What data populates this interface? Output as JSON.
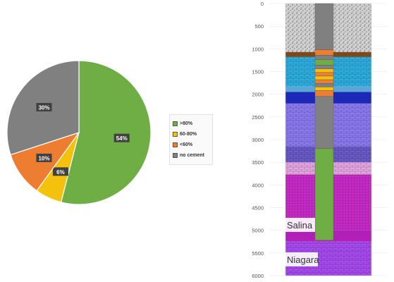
{
  "chart_data": [
    {
      "type": "pie",
      "categories": [
        ">80%",
        "60-80%",
        "<60%",
        "no cement"
      ],
      "values": [
        54,
        6,
        10,
        30
      ],
      "labels": [
        "54%",
        "6%",
        "10%",
        "30%"
      ],
      "colors": [
        "#6fae45",
        "#f4c20d",
        "#ed7d31",
        "#808080"
      ],
      "legend_position": "right"
    },
    {
      "type": "bar",
      "orientation": "vertical-depth-column",
      "yaxis_ticks": [
        "0",
        "500",
        "1000",
        "1500",
        "2000",
        "2500",
        "3000",
        "3500",
        "4000",
        "4500",
        "5000",
        "5500",
        "6000"
      ],
      "ylim": [
        0,
        6000
      ],
      "yaxis_inverted": true,
      "ylabel": "",
      "formation_labels": [
        {
          "text": "Salina",
          "depth": 4880
        },
        {
          "text": "Niagara",
          "depth": 5640
        }
      ],
      "layers": [
        {
          "top": 0,
          "bottom": 1070,
          "color": "#d0d0d0",
          "pattern": "speckle"
        },
        {
          "top": 1070,
          "bottom": 1180,
          "color": "#7a4a1e",
          "pattern": "solid"
        },
        {
          "top": 1180,
          "bottom": 1830,
          "color": "#2eaedf",
          "pattern": "brick"
        },
        {
          "top": 1830,
          "bottom": 1950,
          "color": "#5aa7d6",
          "pattern": "solid"
        },
        {
          "top": 1950,
          "bottom": 2200,
          "color": "#1c28b8",
          "pattern": "solid"
        },
        {
          "top": 2200,
          "bottom": 3150,
          "color": "#8c7af0",
          "pattern": "brick"
        },
        {
          "top": 3150,
          "bottom": 3500,
          "color": "#6a5ac8",
          "pattern": "brick"
        },
        {
          "top": 3500,
          "bottom": 3770,
          "color": "#e4a7e2",
          "pattern": "brick"
        },
        {
          "top": 3770,
          "bottom": 5000,
          "color": "#c728c7",
          "pattern": "grid"
        },
        {
          "top": 5000,
          "bottom": 5250,
          "color": "#b020b8",
          "pattern": "solid"
        },
        {
          "top": 5250,
          "bottom": 6000,
          "color": "#a74bf0",
          "pattern": "brick"
        }
      ],
      "casing_segments": [
        {
          "top": 0,
          "bottom": 1020,
          "color": "#808080"
        },
        {
          "top": 1020,
          "bottom": 1140,
          "color": "#ed7d31"
        },
        {
          "top": 1140,
          "bottom": 1240,
          "color": "#808080"
        },
        {
          "top": 1240,
          "bottom": 1360,
          "color": "#6fae45"
        },
        {
          "top": 1360,
          "bottom": 1440,
          "color": "#808080"
        },
        {
          "top": 1440,
          "bottom": 1520,
          "color": "#f4c20d"
        },
        {
          "top": 1520,
          "bottom": 1600,
          "color": "#ed7d31"
        },
        {
          "top": 1600,
          "bottom": 1680,
          "color": "#f4c20d"
        },
        {
          "top": 1680,
          "bottom": 1760,
          "color": "#ed7d31"
        },
        {
          "top": 1760,
          "bottom": 1840,
          "color": "#808080"
        },
        {
          "top": 1840,
          "bottom": 1920,
          "color": "#f4c20d"
        },
        {
          "top": 1920,
          "bottom": 2050,
          "color": "#ed7d31"
        },
        {
          "top": 2050,
          "bottom": 3200,
          "color": "#808080"
        },
        {
          "top": 3200,
          "bottom": 5220,
          "color": "#6fae45"
        }
      ]
    }
  ]
}
